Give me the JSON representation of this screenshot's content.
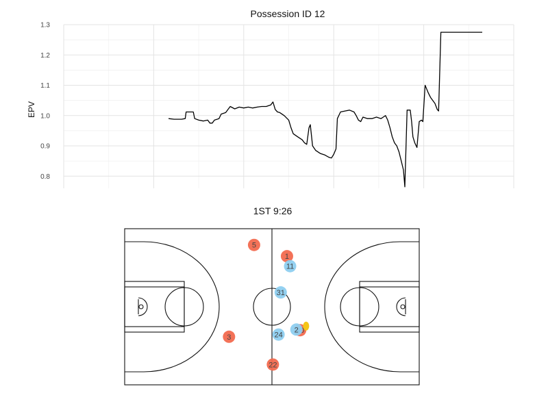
{
  "chart_data": [
    {
      "type": "line",
      "title": "Possession ID 12",
      "xlabel": "",
      "ylabel": "EPV",
      "ylim": [
        0.76,
        1.3
      ],
      "yticks": [
        0.8,
        0.9,
        1.0,
        1.1,
        1.2,
        1.3
      ],
      "ytick_labels": [
        "0.8",
        "0.9",
        "1.0",
        "1.1",
        "1.2",
        "1.3"
      ],
      "grid": true,
      "xlim": [
        0,
        1
      ],
      "series": [
        {
          "color": "#000000",
          "points": [
            [
              0.233,
              0.99
            ],
            [
              0.245,
              0.988
            ],
            [
              0.262,
              0.988
            ],
            [
              0.27,
              0.99
            ],
            [
              0.272,
              1.012
            ],
            [
              0.288,
              1.012
            ],
            [
              0.291,
              0.99
            ],
            [
              0.3,
              0.985
            ],
            [
              0.31,
              0.982
            ],
            [
              0.32,
              0.985
            ],
            [
              0.325,
              0.975
            ],
            [
              0.33,
              0.975
            ],
            [
              0.335,
              0.985
            ],
            [
              0.345,
              0.99
            ],
            [
              0.35,
              1.005
            ],
            [
              0.36,
              1.01
            ],
            [
              0.365,
              1.02
            ],
            [
              0.37,
              1.03
            ],
            [
              0.38,
              1.022
            ],
            [
              0.39,
              1.028
            ],
            [
              0.4,
              1.025
            ],
            [
              0.41,
              1.028
            ],
            [
              0.42,
              1.025
            ],
            [
              0.43,
              1.028
            ],
            [
              0.44,
              1.03
            ],
            [
              0.45,
              1.03
            ],
            [
              0.46,
              1.035
            ],
            [
              0.465,
              1.045
            ],
            [
              0.47,
              1.02
            ],
            [
              0.475,
              1.012
            ],
            [
              0.48,
              1.01
            ],
            [
              0.49,
              1.0
            ],
            [
              0.5,
              0.985
            ],
            [
              0.505,
              0.96
            ],
            [
              0.51,
              0.94
            ],
            [
              0.52,
              0.93
            ],
            [
              0.53,
              0.92
            ],
            [
              0.535,
              0.91
            ],
            [
              0.54,
              0.905
            ],
            [
              0.545,
              0.96
            ],
            [
              0.548,
              0.97
            ],
            [
              0.553,
              0.9
            ],
            [
              0.56,
              0.885
            ],
            [
              0.57,
              0.875
            ],
            [
              0.58,
              0.87
            ],
            [
              0.59,
              0.862
            ],
            [
              0.595,
              0.86
            ],
            [
              0.6,
              0.872
            ],
            [
              0.605,
              0.89
            ],
            [
              0.608,
              0.99
            ],
            [
              0.615,
              1.012
            ],
            [
              0.625,
              1.015
            ],
            [
              0.635,
              1.018
            ],
            [
              0.645,
              1.012
            ],
            [
              0.65,
              1.0
            ],
            [
              0.655,
              0.985
            ],
            [
              0.66,
              0.98
            ],
            [
              0.665,
              0.995
            ],
            [
              0.675,
              0.99
            ],
            [
              0.685,
              0.99
            ],
            [
              0.695,
              0.995
            ],
            [
              0.705,
              0.99
            ],
            [
              0.71,
              0.995
            ],
            [
              0.715,
              1.0
            ],
            [
              0.72,
              0.985
            ],
            [
              0.725,
              0.96
            ],
            [
              0.73,
              0.93
            ],
            [
              0.735,
              0.91
            ],
            [
              0.74,
              0.9
            ],
            [
              0.745,
              0.88
            ],
            [
              0.75,
              0.85
            ],
            [
              0.755,
              0.82
            ],
            [
              0.758,
              0.765
            ],
            [
              0.763,
              1.018
            ],
            [
              0.77,
              1.018
            ],
            [
              0.773,
              0.98
            ],
            [
              0.776,
              0.93
            ],
            [
              0.78,
              0.91
            ],
            [
              0.785,
              0.895
            ],
            [
              0.79,
              0.98
            ],
            [
              0.795,
              0.985
            ],
            [
              0.798,
              0.98
            ],
            [
              0.803,
              1.1
            ],
            [
              0.81,
              1.075
            ],
            [
              0.815,
              1.06
            ],
            [
              0.82,
              1.05
            ],
            [
              0.825,
              1.04
            ],
            [
              0.83,
              1.02
            ],
            [
              0.833,
              1.015
            ],
            [
              0.838,
              1.275
            ],
            [
              0.93,
              1.275
            ]
          ]
        }
      ]
    },
    {
      "type": "scatter",
      "title": "1ST 9:26",
      "xlabel": "",
      "ylabel": "",
      "xlim": [
        0,
        94
      ],
      "ylim": [
        0,
        50
      ],
      "grid": false,
      "series": [
        {
          "name": "",
          "color": "#f26a4f",
          "points": [
            {
              "label": "5",
              "x": 41.3,
              "y": 44.8
            },
            {
              "label": "1",
              "x": 51.8,
              "y": 41.2
            },
            {
              "label": "3",
              "x": 33.3,
              "y": 15.4
            },
            {
              "label": "40",
              "x": 56.0,
              "y": 17.5
            },
            {
              "label": "22",
              "x": 47.3,
              "y": 6.5
            }
          ]
        },
        {
          "name": "",
          "color": "#8ecff0",
          "points": [
            {
              "label": "11",
              "x": 52.8,
              "y": 38.0
            },
            {
              "label": "31",
              "x": 49.8,
              "y": 29.6
            },
            {
              "label": "24",
              "x": 49.1,
              "y": 16.1
            },
            {
              "label": "2",
              "x": 54.8,
              "y": 17.7
            }
          ]
        },
        {
          "name": "",
          "color": "#f5c518",
          "points": [
            {
              "label": "",
              "x": 57.9,
              "y": 18.8
            }
          ]
        }
      ]
    }
  ]
}
